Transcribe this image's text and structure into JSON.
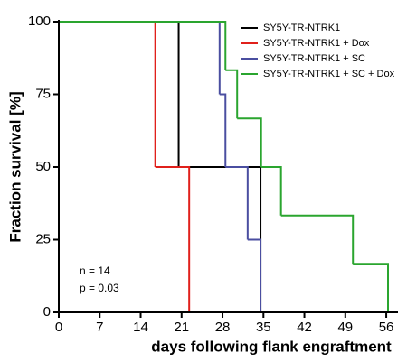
{
  "chart_data": {
    "type": "step",
    "x_label": "days following flank engraftment",
    "y_label": "Fraction survival [%]",
    "annotations": [
      "n = 14",
      "p = 0.03"
    ],
    "xlim": [
      0,
      58
    ],
    "xticks": [
      0,
      7,
      14,
      21,
      28,
      35,
      42,
      49,
      56
    ],
    "ylim": [
      0,
      100
    ],
    "yticks": [
      0,
      25,
      50,
      75,
      100
    ],
    "legend": "upper right",
    "series": [
      {
        "name": "SY5Y-TR-NTRK1",
        "color": "#000000",
        "x": [
          0,
          20.5,
          34.5
        ],
        "values": [
          100,
          50,
          0
        ]
      },
      {
        "name": "SY5Y-TR-NTRK1 + Dox",
        "color": "#e0201b",
        "x": [
          0,
          16.5,
          22.3
        ],
        "values": [
          100,
          50,
          0
        ]
      },
      {
        "name": "SY5Y-TR-NTRK1 + SC",
        "color": "#4a4ea0",
        "x": [
          0,
          27.5,
          28.5,
          32.3,
          34.5
        ],
        "values": [
          100,
          75,
          50,
          25,
          0
        ]
      },
      {
        "name": "SY5Y-TR-NTRK1 + SC + Dox",
        "color": "#2aa52f",
        "x": [
          0,
          28.5,
          30.5,
          34.6,
          38,
          50.3,
          56.3
        ],
        "values": [
          100,
          83.3,
          66.7,
          50,
          33.3,
          16.7,
          0
        ]
      }
    ]
  }
}
